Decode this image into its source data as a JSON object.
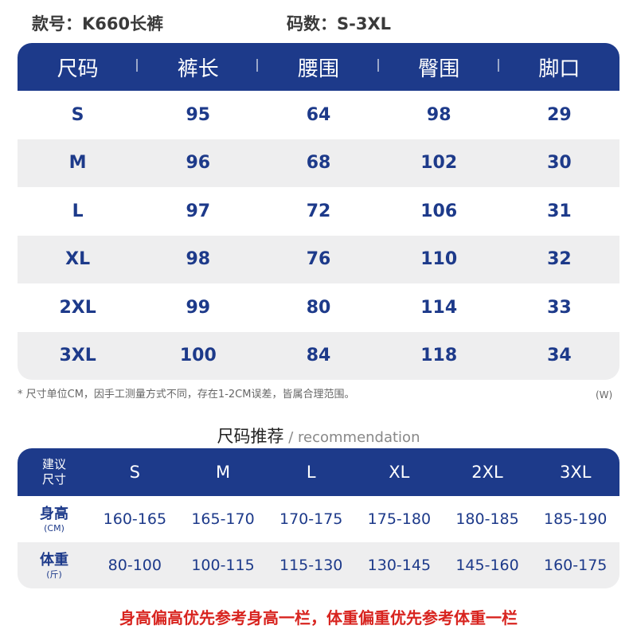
{
  "header": {
    "style_label": "款号：K660长裤",
    "size_range_label": "码数：S-3XL"
  },
  "size_table": {
    "headers": [
      "尺码",
      "裤长",
      "腰围",
      "臀围",
      "脚口"
    ],
    "rows": [
      [
        "S",
        "95",
        "64",
        "98",
        "29"
      ],
      [
        "M",
        "96",
        "68",
        "102",
        "30"
      ],
      [
        "L",
        "97",
        "72",
        "106",
        "31"
      ],
      [
        "XL",
        "98",
        "76",
        "110",
        "32"
      ],
      [
        "2XL",
        "99",
        "80",
        "114",
        "33"
      ],
      [
        "3XL",
        "100",
        "84",
        "118",
        "34"
      ]
    ]
  },
  "footnote": "* 尺寸单位CM，因手工测量方式不同，存在1-2CM误差，皆属合理范围。",
  "watermark": "(W)",
  "recommendation": {
    "title_zh": "尺码推荐",
    "title_en": " / recommendation",
    "header_label_line1": "建议",
    "header_label_line2": "尺寸",
    "sizes": [
      "S",
      "M",
      "L",
      "XL",
      "2XL",
      "3XL"
    ],
    "rows": [
      {
        "label": "身高",
        "unit": "(CM)",
        "values": [
          "160-165",
          "165-170",
          "170-175",
          "175-180",
          "180-185",
          "185-190"
        ]
      },
      {
        "label": "体重",
        "unit": "(斤)",
        "values": [
          "80-100",
          "100-115",
          "115-130",
          "130-145",
          "145-160",
          "160-175"
        ]
      }
    ]
  },
  "tip": "身高偏高优先参考身高一栏，体重偏重优先参考体重一栏",
  "colors": {
    "header_bg": "#1d3a8a",
    "text_blue": "#1d3a8a",
    "row_alt": "#eeeeef",
    "tip_red": "#d8241f"
  }
}
